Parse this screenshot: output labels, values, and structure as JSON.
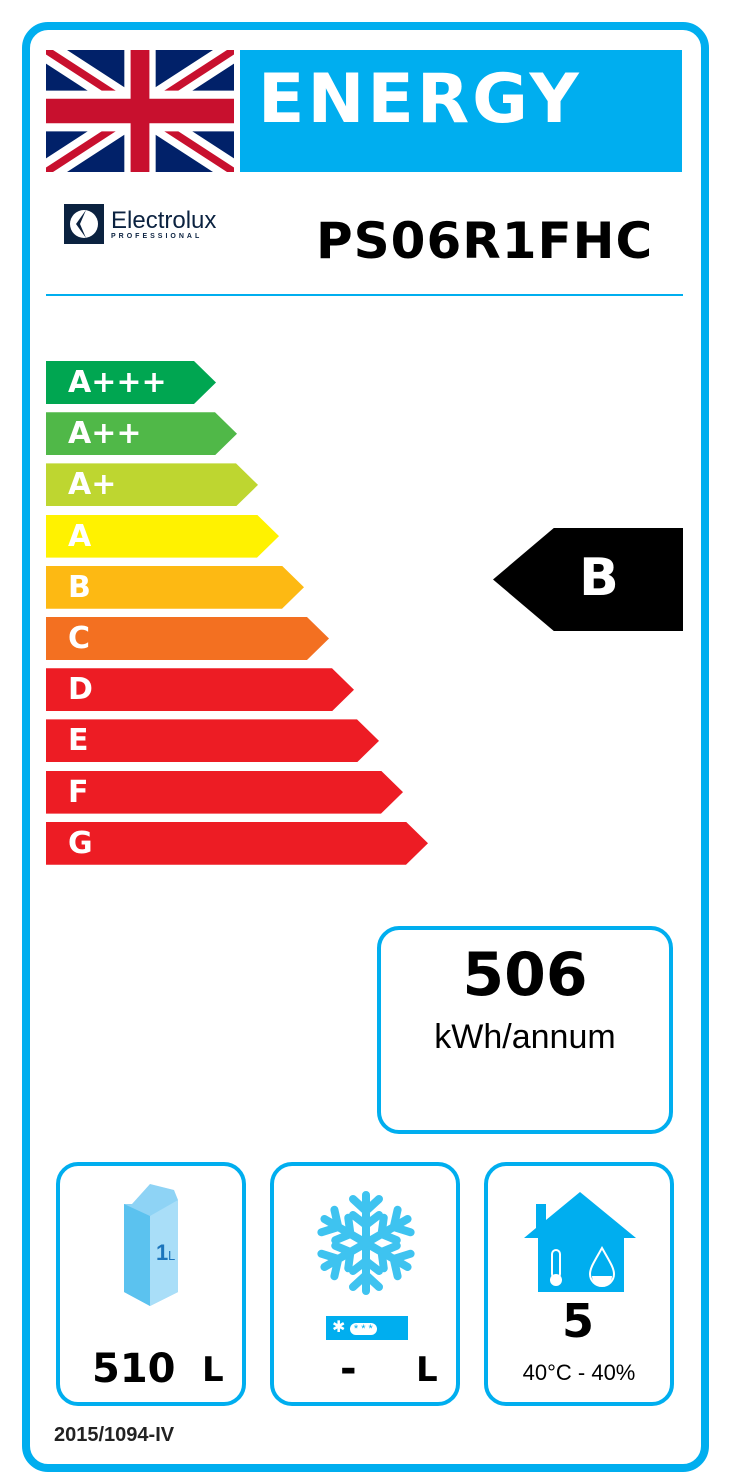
{
  "header": {
    "flag_icon": "union-jack-flag",
    "title": "ENERGY",
    "brand": {
      "name": "Electrolux",
      "sub": "PROFESSIONAL"
    },
    "model": "PS06R1FHC"
  },
  "scale": [
    {
      "label": "A+++",
      "color": "#00a651"
    },
    {
      "label": "A++",
      "color": "#50b848"
    },
    {
      "label": "A+",
      "color": "#bed630"
    },
    {
      "label": "A",
      "color": "#fff200"
    },
    {
      "label": "B",
      "color": "#fdb913"
    },
    {
      "label": "C",
      "color": "#f37021"
    },
    {
      "label": "D",
      "color": "#ed1c24"
    },
    {
      "label": "E",
      "color": "#ed1c24"
    },
    {
      "label": "F",
      "color": "#ed1c24"
    },
    {
      "label": "G",
      "color": "#ed1c24"
    }
  ],
  "rating": "B",
  "consumption": {
    "value": "506",
    "unit": "kWh/annum"
  },
  "chilled": {
    "icon": "milk-carton-icon",
    "value": "510",
    "unit": "L"
  },
  "frozen": {
    "icon": "snowflake-icon",
    "value": "-",
    "unit": "L"
  },
  "climate": {
    "icon": "house-climate-icon",
    "value": "5",
    "conditions": "40°C - 40%"
  },
  "regulation": "2015/1094-IV",
  "accent": "#00aeef"
}
